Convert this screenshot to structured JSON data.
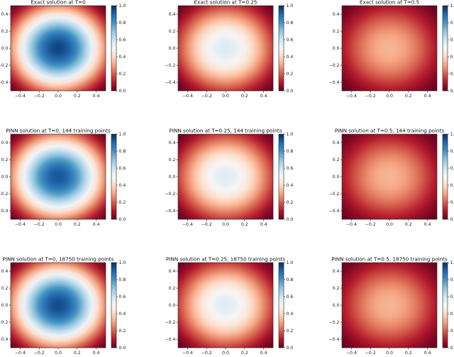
{
  "chart_data": [
    {
      "type": "heatmap",
      "title": "Exact solution at T=0",
      "time": 0,
      "xlim": [
        -0.5,
        0.5
      ],
      "ylim": [
        -0.5,
        0.5
      ],
      "xticks": [
        "−0.4",
        "−0.2",
        "0.0",
        "0.2",
        "0.4"
      ],
      "yticks": [
        "0.4",
        "0.2",
        "0.0",
        "−0.2",
        "−0.4"
      ],
      "colorbar": {
        "range": [
          0,
          1
        ],
        "ticks": [
          "1.0",
          "0.8",
          "0.6",
          "0.4",
          "0.2",
          "0.0"
        ],
        "colormap": "RdBu"
      },
      "peak_value": 0.96
    },
    {
      "type": "heatmap",
      "title": "Exact solution at T=0.25",
      "time": 0.25,
      "xlim": [
        -0.5,
        0.5
      ],
      "ylim": [
        -0.5,
        0.5
      ],
      "xticks": [
        "−0.4",
        "−0.2",
        "0.0",
        "0.2",
        "0.4"
      ],
      "yticks": [
        "0.4",
        "0.2",
        "0.0",
        "−0.2",
        "−0.4"
      ],
      "colorbar": {
        "range": [
          0,
          1
        ],
        "ticks": [
          "1.0",
          "0.8",
          "0.6",
          "0.4",
          "0.2",
          "0.0"
        ],
        "colormap": "RdBu"
      },
      "peak_value": 0.57
    },
    {
      "type": "heatmap",
      "title": "Exact solution at T=0.5",
      "time": 0.5,
      "xlim": [
        -0.5,
        0.5
      ],
      "ylim": [
        -0.5,
        0.5
      ],
      "xticks": [
        "−0.4",
        "−0.2",
        "0.0",
        "0.2",
        "0.4"
      ],
      "yticks": [
        "0.4",
        "0.2",
        "0.0",
        "−0.2",
        "−0.4"
      ],
      "colorbar": {
        "range": [
          0,
          1
        ],
        "ticks": [
          "1.0",
          "0.8",
          "0.6",
          "0.4",
          "0.2",
          "0.0"
        ],
        "colormap": "RdBu"
      },
      "peak_value": 0.33
    },
    {
      "type": "heatmap",
      "title": "PINN solution at T=0, 144 training points",
      "time": 0,
      "xlim": [
        -0.5,
        0.5
      ],
      "ylim": [
        -0.5,
        0.5
      ],
      "xticks": [
        "−0.4",
        "−0.2",
        "0.0",
        "0.2",
        "0.4"
      ],
      "yticks": [
        "0.4",
        "0.2",
        "0.0",
        "−0.2",
        "−0.4"
      ],
      "colorbar": {
        "range": [
          0,
          1
        ],
        "ticks": [
          "1.0",
          "0.8",
          "0.6",
          "0.4",
          "0.2",
          "0.0"
        ],
        "colormap": "RdBu"
      },
      "peak_value": 0.93
    },
    {
      "type": "heatmap",
      "title": "PINN solution at T=0.25, 144 training points",
      "time": 0.25,
      "xlim": [
        -0.5,
        0.5
      ],
      "ylim": [
        -0.5,
        0.5
      ],
      "xticks": [
        "−0.4",
        "−0.2",
        "0.0",
        "0.2",
        "0.4"
      ],
      "yticks": [
        "0.4",
        "0.2",
        "0.0",
        "−0.2",
        "−0.4"
      ],
      "colorbar": {
        "range": [
          0,
          1
        ],
        "ticks": [
          "1.0",
          "0.8",
          "0.6",
          "0.4",
          "0.2",
          "0.0"
        ],
        "colormap": "RdBu"
      },
      "peak_value": 0.56
    },
    {
      "type": "heatmap",
      "title": "PINN solution at T=0.5, 144 training points",
      "time": 0.5,
      "xlim": [
        -0.5,
        0.5
      ],
      "ylim": [
        -0.5,
        0.5
      ],
      "xticks": [
        "−0.4",
        "−0.2",
        "0.0",
        "0.2",
        "0.4"
      ],
      "yticks": [
        "0.4",
        "0.2",
        "0.0",
        "−0.2",
        "−0.4"
      ],
      "colorbar": {
        "range": [
          0,
          1
        ],
        "ticks": [
          "1.0",
          "0.8",
          "0.6",
          "0.4",
          "0.2",
          "0.0"
        ],
        "colormap": "RdBu"
      },
      "peak_value": 0.33
    },
    {
      "type": "heatmap",
      "title": "PINN solution at T=0, 18750 training points",
      "time": 0,
      "xlim": [
        -0.5,
        0.5
      ],
      "ylim": [
        -0.5,
        0.5
      ],
      "xticks": [
        "−0.4",
        "−0.2",
        "0.0",
        "0.2",
        "0.4"
      ],
      "yticks": [
        "0.4",
        "0.2",
        "0.0",
        "−0.2",
        "−0.4"
      ],
      "colorbar": {
        "range": [
          0,
          1
        ],
        "ticks": [
          "1.0",
          "0.8",
          "0.6",
          "0.4",
          "0.2",
          "0.0"
        ],
        "colormap": "RdBu"
      },
      "peak_value": 0.95
    },
    {
      "type": "heatmap",
      "title": "PINN solution at T=0.25, 18750 training points",
      "time": 0.25,
      "xlim": [
        -0.5,
        0.5
      ],
      "ylim": [
        -0.5,
        0.5
      ],
      "xticks": [
        "−0.4",
        "−0.2",
        "0.0",
        "0.2",
        "0.4"
      ],
      "yticks": [
        "0.4",
        "0.2",
        "0.0",
        "−0.2",
        "−0.4"
      ],
      "colorbar": {
        "range": [
          0,
          1
        ],
        "ticks": [
          "1.0",
          "0.8",
          "0.6",
          "0.4",
          "0.2",
          "0.0"
        ],
        "colormap": "RdBu"
      },
      "peak_value": 0.56
    },
    {
      "type": "heatmap",
      "title": "PINN solution at T=0.5, 18750 training points",
      "time": 0.5,
      "xlim": [
        -0.5,
        0.5
      ],
      "ylim": [
        -0.5,
        0.5
      ],
      "xticks": [
        "−0.4",
        "−0.2",
        "0.0",
        "0.2",
        "0.4"
      ],
      "yticks": [
        "0.4",
        "0.2",
        "0.0",
        "−0.2",
        "−0.4"
      ],
      "colorbar": {
        "range": [
          0,
          1
        ],
        "ticks": [
          "1.0",
          "0.8",
          "0.6",
          "0.4",
          "0.2",
          "0.0"
        ],
        "colormap": "RdBu"
      },
      "peak_value": 0.33
    }
  ]
}
